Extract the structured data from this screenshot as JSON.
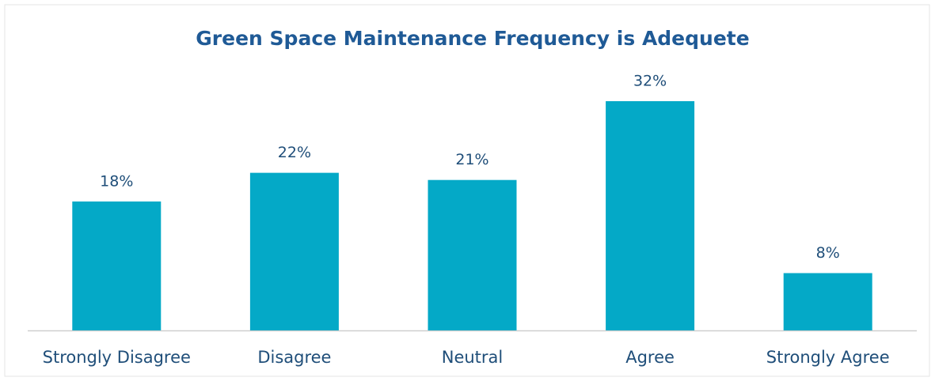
{
  "chart_data": {
    "type": "bar",
    "title": "Green Space Maintenance Frequency is Adequete",
    "categories": [
      "Strongly Disagree",
      "Disagree",
      "Neutral",
      "Agree",
      "Strongly Agree"
    ],
    "values": [
      18,
      22,
      21,
      32,
      8
    ],
    "value_labels": [
      "18%",
      "22%",
      "21%",
      "32%",
      "8%"
    ],
    "color": "#04a9c7"
  }
}
